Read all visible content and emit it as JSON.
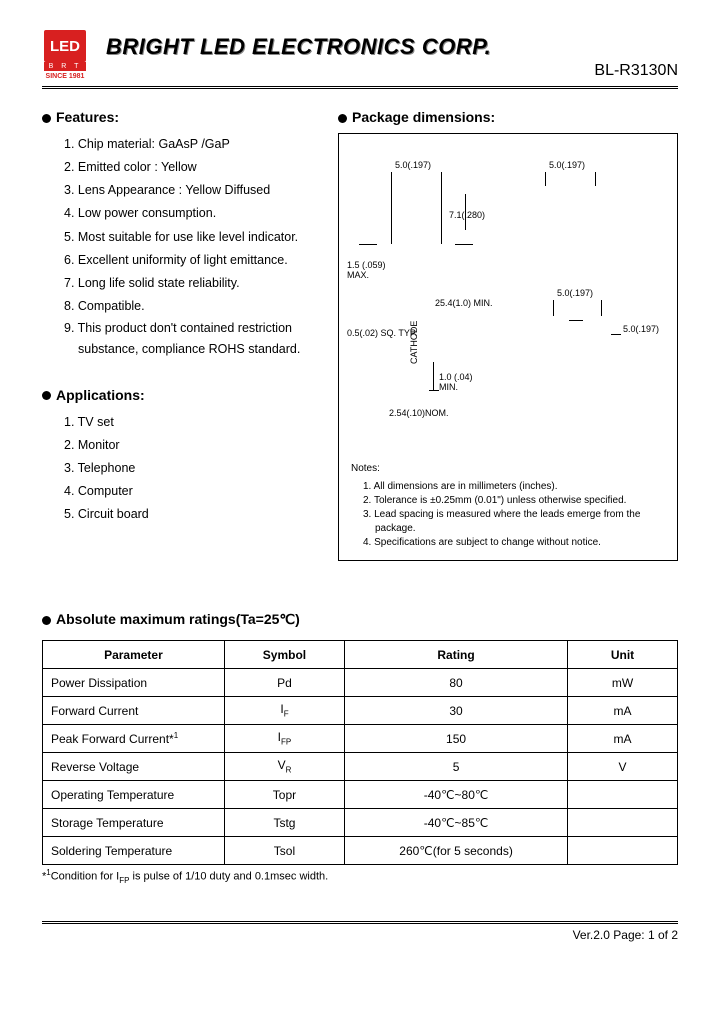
{
  "header": {
    "logo_text": "LED",
    "logo_brt": "B R T",
    "logo_since": "SINCE 1981",
    "company_name": "BRIGHT LED ELECTRONICS CORP.",
    "part_number": "BL-R3130N"
  },
  "features": {
    "heading": "Features:",
    "items": [
      "1. Chip material: GaAsP /GaP",
      "2. Emitted color : Yellow",
      "3. Lens Appearance : Yellow Diffused",
      "4. Low power consumption.",
      "5. Most suitable for use like level indicator.",
      "6. Excellent uniformity of light emittance.",
      "7. Long life solid state reliability.",
      "8. Compatible.",
      "9. This product don't contained restriction substance, compliance ROHS standard."
    ]
  },
  "applications": {
    "heading": "Applications:",
    "items": [
      "1. TV set",
      "2. Monitor",
      "3. Telephone",
      "4. Computer",
      "5. Circuit board"
    ]
  },
  "package": {
    "heading": "Package dimensions:",
    "dims": {
      "d1": "5.0(.197)",
      "d2": "5.0(.197)",
      "d3": "7.1(.280)",
      "d4": "1.5 (.059)",
      "d4b": "MAX.",
      "d5": "25.4(1.0) MIN.",
      "d6": "5.0(.197)",
      "d7": "5.0(.197)",
      "d8": "0.5(.02) SQ. TYP.",
      "d9": "CATHODE",
      "d10": "1.0 (.04)",
      "d10b": "MIN.",
      "d11": "2.54(.10)NOM."
    },
    "notes_title": "Notes:",
    "notes": [
      "1. All dimensions are in millimeters (inches).",
      "2. Tolerance is ±0.25mm (0.01\") unless otherwise specified.",
      "3. Lead spacing is measured where the leads emerge from the package.",
      "4. Specifications are subject to change without notice."
    ]
  },
  "ratings": {
    "heading": "Absolute maximum ratings(Ta=25℃)",
    "columns": [
      "Parameter",
      "Symbol",
      "Rating",
      "Unit"
    ],
    "rows": [
      {
        "param": "Power Dissipation",
        "symbol": "Pd",
        "rating": "80",
        "unit": "mW"
      },
      {
        "param": "Forward Current",
        "symbol_html": "I<span class='sub'>F</span>",
        "rating": "30",
        "unit": "mA"
      },
      {
        "param_html": "Peak Forward Current*<span class='sup'>1</span>",
        "symbol_html": "I<span class='sub'>FP</span>",
        "rating": "150",
        "unit": "mA"
      },
      {
        "param": "Reverse Voltage",
        "symbol_html": "V<span class='sub'>R</span>",
        "rating": "5",
        "unit": "V"
      },
      {
        "param": "Operating Temperature",
        "symbol": "Topr",
        "rating": "-40℃~80℃",
        "unit": ""
      },
      {
        "param": "Storage Temperature",
        "symbol": "Tstg",
        "rating": "-40℃~85℃",
        "unit": ""
      },
      {
        "param": "Soldering Temperature",
        "symbol": "Tsol",
        "rating": "260℃(for 5 seconds)",
        "unit": ""
      }
    ],
    "footnote_html": "*<span class='sup'>1</span>Condition for I<span class='sub'>FP</span> is pulse of 1/10 duty and 0.1msec width."
  },
  "footer": {
    "text": "Ver.2.0  Page:  1  of  2"
  },
  "colors": {
    "logo_bg": "#d82020",
    "text": "#000000",
    "page_bg": "#ffffff"
  }
}
